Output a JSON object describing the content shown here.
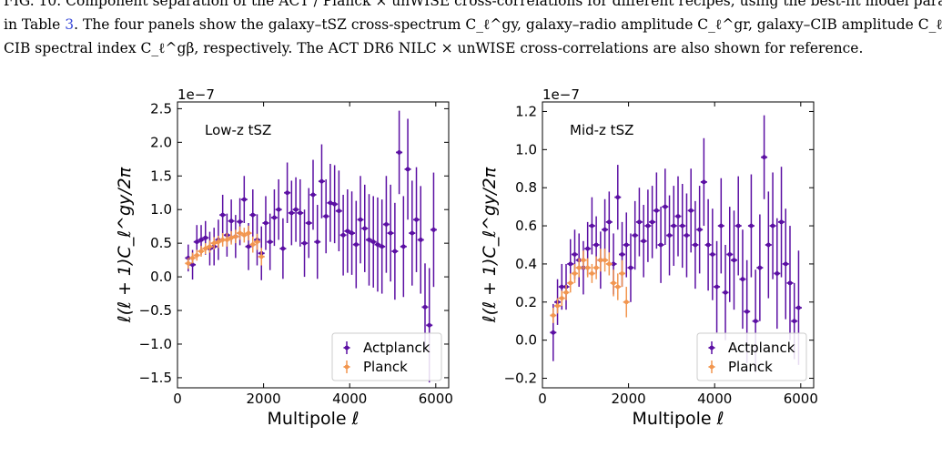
{
  "caption": {
    "line1": "FIG. 10.   Component separation of the ACT / Planck × unWISE cross-correlations for different recipes, using the best-fit model parameters",
    "line2_pre": "in Table ",
    "line2_link": "3",
    "line2_post": ". The four panels show the galaxy–tSZ cross-spectrum C_ℓ^gy, galaxy–radio amplitude C_ℓ^gr, galaxy–CIB amplitude C_ℓ^gB, and galaxy–",
    "line3": "CIB spectral index C_ℓ^gβ, respectively. The ACT DR6 NILC × unWISE cross-correlations are also shown for reference."
  },
  "colors": {
    "actplanck": "#5b0fa3",
    "planck": "#f2964f"
  },
  "chart_data": [
    {
      "type": "scatter",
      "panel_label": "Low-z tSZ",
      "scale_label": "1e−7",
      "xlabel": "Multipole ℓ",
      "ylabel": "ℓ(ℓ + 1)C_ℓ^gy/2π",
      "xlim": [
        0,
        6300
      ],
      "ylim": [
        -1.65,
        2.6
      ],
      "xticks": [
        0,
        2000,
        4000,
        6000
      ],
      "yticks": [
        -1.5,
        -1.0,
        -0.5,
        0.0,
        0.5,
        1.0,
        1.5,
        2.0,
        2.5
      ],
      "legend_position": "lower right",
      "series": [
        {
          "name": "Actplanck",
          "x": [
            250,
            350,
            450,
            550,
            650,
            750,
            850,
            950,
            1050,
            1150,
            1250,
            1350,
            1450,
            1550,
            1650,
            1750,
            1850,
            1950,
            2050,
            2150,
            2250,
            2350,
            2450,
            2550,
            2650,
            2750,
            2850,
            2950,
            3050,
            3150,
            3250,
            3350,
            3450,
            3550,
            3650,
            3750,
            3850,
            3950,
            4050,
            4150,
            4250,
            4350,
            4450,
            4550,
            4650,
            4750,
            4850,
            4950,
            5050,
            5150,
            5250,
            5350,
            5450,
            5550,
            5650,
            5750,
            5850,
            5950
          ],
          "y": [
            0.28,
            0.18,
            0.52,
            0.55,
            0.58,
            0.42,
            0.45,
            0.55,
            0.92,
            0.62,
            0.83,
            0.6,
            0.82,
            1.15,
            0.45,
            0.92,
            0.55,
            0.35,
            0.8,
            0.52,
            0.88,
            1.0,
            0.42,
            1.25,
            0.95,
            1.0,
            0.95,
            0.5,
            0.8,
            1.22,
            0.52,
            1.42,
            0.9,
            1.1,
            1.08,
            0.98,
            0.62,
            0.68,
            0.65,
            0.48,
            0.85,
            0.72,
            0.55,
            0.52,
            0.48,
            0.45,
            0.78,
            0.65,
            0.38,
            1.85,
            0.45,
            1.6,
            0.65,
            0.85,
            0.55,
            -0.45,
            -0.72,
            0.7
          ],
          "yerr": [
            0.2,
            0.22,
            0.25,
            0.22,
            0.25,
            0.25,
            0.28,
            0.3,
            0.3,
            0.32,
            0.32,
            0.32,
            0.35,
            0.35,
            0.35,
            0.38,
            0.38,
            0.4,
            0.4,
            0.42,
            0.42,
            0.45,
            0.45,
            0.45,
            0.48,
            0.48,
            0.5,
            0.5,
            0.52,
            0.52,
            0.55,
            0.55,
            0.55,
            0.58,
            0.58,
            0.6,
            0.6,
            0.62,
            0.62,
            0.65,
            0.65,
            0.65,
            0.68,
            0.68,
            0.7,
            0.7,
            0.72,
            0.72,
            0.72,
            0.62,
            0.75,
            0.75,
            0.78,
            0.78,
            0.8,
            0.65,
            0.85,
            0.85
          ]
        },
        {
          "name": "Planck",
          "x": [
            250,
            350,
            450,
            550,
            650,
            750,
            850,
            950,
            1050,
            1150,
            1250,
            1350,
            1450,
            1550,
            1650,
            1750,
            1850,
            1950
          ],
          "y": [
            0.2,
            0.28,
            0.32,
            0.38,
            0.42,
            0.45,
            0.5,
            0.52,
            0.55,
            0.55,
            0.58,
            0.6,
            0.65,
            0.62,
            0.65,
            0.48,
            0.52,
            0.3
          ],
          "yerr": [
            0.08,
            0.08,
            0.08,
            0.08,
            0.08,
            0.09,
            0.09,
            0.09,
            0.1,
            0.1,
            0.1,
            0.1,
            0.1,
            0.11,
            0.11,
            0.12,
            0.12,
            0.13
          ]
        }
      ]
    },
    {
      "type": "scatter",
      "panel_label": "Mid-z tSZ",
      "scale_label": "1e−7",
      "xlabel": "Multipole ℓ",
      "ylabel": "ℓ(ℓ + 1)C_ℓ^gy/2π",
      "xlim": [
        0,
        6300
      ],
      "ylim": [
        -0.25,
        1.25
      ],
      "xticks": [
        0,
        2000,
        4000,
        6000
      ],
      "yticks": [
        -0.2,
        0.0,
        0.2,
        0.4,
        0.6,
        0.8,
        1.0,
        1.2
      ],
      "legend_position": "lower right",
      "series": [
        {
          "name": "Actplanck",
          "x": [
            250,
            350,
            450,
            550,
            650,
            750,
            850,
            950,
            1050,
            1150,
            1250,
            1350,
            1450,
            1550,
            1650,
            1750,
            1850,
            1950,
            2050,
            2150,
            2250,
            2350,
            2450,
            2550,
            2650,
            2750,
            2850,
            2950,
            3050,
            3150,
            3250,
            3350,
            3450,
            3550,
            3650,
            3750,
            3850,
            3950,
            4050,
            4150,
            4250,
            4350,
            4450,
            4550,
            4650,
            4750,
            4850,
            4950,
            5050,
            5150,
            5250,
            5350,
            5450,
            5550,
            5650,
            5750,
            5850,
            5950
          ],
          "y": [
            0.04,
            0.2,
            0.28,
            0.28,
            0.4,
            0.45,
            0.42,
            0.38,
            0.48,
            0.6,
            0.5,
            0.42,
            0.58,
            0.62,
            0.4,
            0.75,
            0.45,
            0.5,
            0.38,
            0.55,
            0.62,
            0.52,
            0.6,
            0.62,
            0.68,
            0.5,
            0.7,
            0.55,
            0.6,
            0.65,
            0.6,
            0.55,
            0.68,
            0.5,
            0.58,
            0.83,
            0.5,
            0.45,
            0.28,
            0.6,
            0.25,
            0.45,
            0.42,
            0.6,
            0.32,
            0.15,
            0.6,
            0.1,
            0.38,
            0.96,
            0.5,
            0.6,
            0.35,
            0.62,
            0.4,
            0.3,
            0.1,
            0.17
          ],
          "yerr": [
            0.15,
            0.12,
            0.12,
            0.12,
            0.13,
            0.13,
            0.14,
            0.14,
            0.14,
            0.15,
            0.15,
            0.15,
            0.16,
            0.16,
            0.16,
            0.17,
            0.17,
            0.17,
            0.18,
            0.18,
            0.18,
            0.19,
            0.19,
            0.19,
            0.2,
            0.2,
            0.2,
            0.21,
            0.21,
            0.21,
            0.22,
            0.22,
            0.22,
            0.23,
            0.23,
            0.23,
            0.24,
            0.24,
            0.24,
            0.25,
            0.25,
            0.25,
            0.26,
            0.26,
            0.26,
            0.27,
            0.27,
            0.27,
            0.28,
            0.22,
            0.28,
            0.28,
            0.29,
            0.29,
            0.29,
            0.3,
            0.2,
            0.3
          ]
        },
        {
          "name": "Planck",
          "x": [
            250,
            350,
            450,
            550,
            650,
            750,
            850,
            950,
            1050,
            1150,
            1250,
            1350,
            1450,
            1550,
            1650,
            1750,
            1850,
            1950
          ],
          "y": [
            0.13,
            0.18,
            0.22,
            0.25,
            0.3,
            0.35,
            0.38,
            0.42,
            0.38,
            0.35,
            0.38,
            0.42,
            0.42,
            0.4,
            0.3,
            0.28,
            0.35,
            0.2
          ],
          "yerr": [
            0.04,
            0.04,
            0.04,
            0.04,
            0.05,
            0.05,
            0.05,
            0.05,
            0.05,
            0.05,
            0.06,
            0.06,
            0.06,
            0.06,
            0.07,
            0.07,
            0.07,
            0.08
          ]
        }
      ]
    }
  ]
}
